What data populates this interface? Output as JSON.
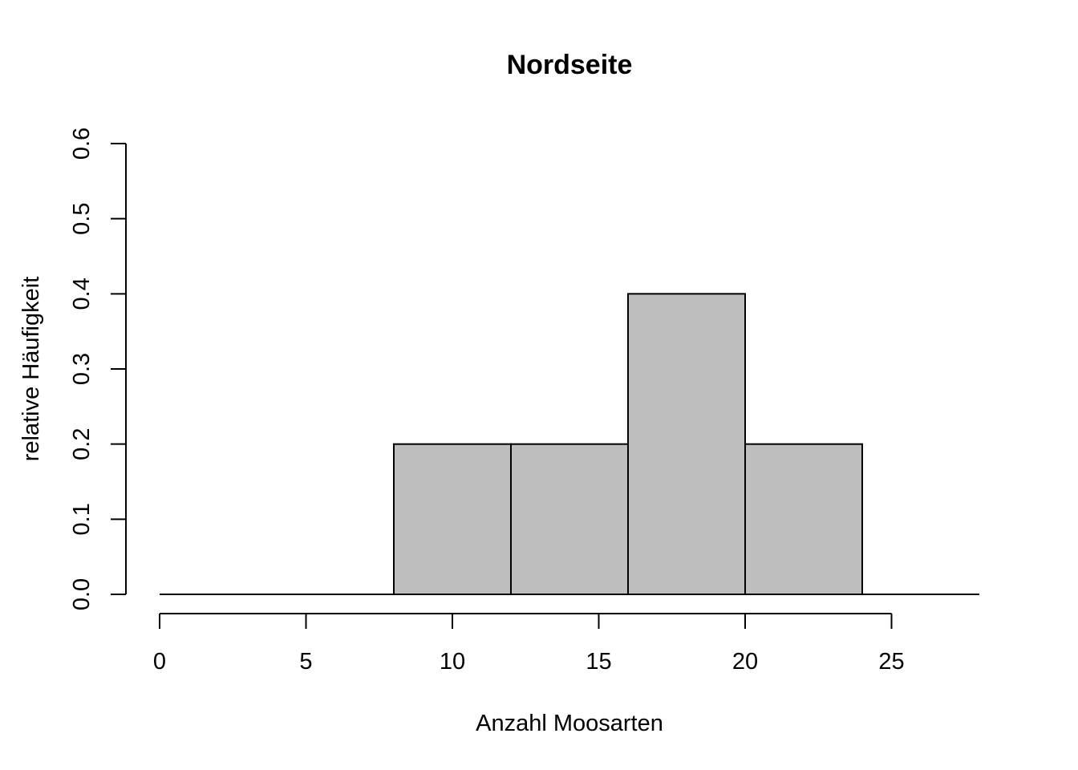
{
  "chart_data": {
    "type": "bar",
    "title": "Nordseite",
    "xlabel": "Anzahl Moosarten",
    "ylabel": "relative Häufigkeit",
    "bins": [
      {
        "from": 0,
        "to": 4,
        "value": 0.0
      },
      {
        "from": 4,
        "to": 8,
        "value": 0.0
      },
      {
        "from": 8,
        "to": 12,
        "value": 0.2
      },
      {
        "from": 12,
        "to": 16,
        "value": 0.2
      },
      {
        "from": 16,
        "to": 20,
        "value": 0.4
      },
      {
        "from": 20,
        "to": 24,
        "value": 0.2
      },
      {
        "from": 24,
        "to": 28,
        "value": 0.0
      }
    ],
    "xlim": [
      0,
      28
    ],
    "ylim": [
      0,
      0.6
    ],
    "xticks": [
      0,
      5,
      10,
      15,
      20,
      25
    ],
    "xtick_labels": [
      "0",
      "5",
      "10",
      "15",
      "20",
      "25"
    ],
    "yticks": [
      0.0,
      0.1,
      0.2,
      0.3,
      0.4,
      0.5,
      0.6
    ],
    "ytick_labels": [
      "0.0",
      "0.1",
      "0.2",
      "0.3",
      "0.4",
      "0.5",
      "0.6"
    ],
    "bar_color": "#bebebe",
    "grid": false,
    "legend": "none"
  }
}
